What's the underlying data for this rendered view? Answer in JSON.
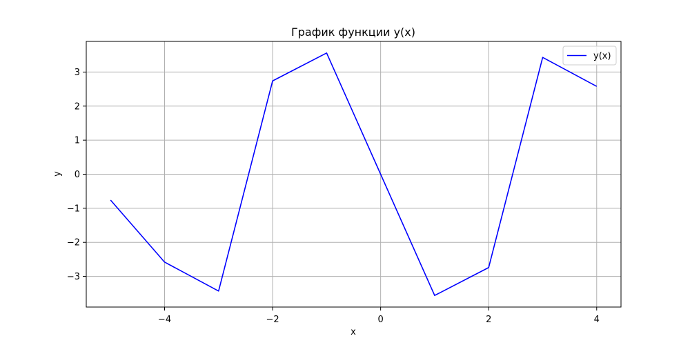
{
  "chart_data": {
    "type": "line",
    "title": "График функции y(x)",
    "xlabel": "x",
    "ylabel": "y",
    "xlim": [
      -5.45,
      4.45
    ],
    "ylim": [
      -3.9,
      3.9
    ],
    "xticks": [
      -4,
      -2,
      0,
      2,
      4
    ],
    "yticks": [
      -3,
      -2,
      -1,
      0,
      1,
      2,
      3
    ],
    "xtick_labels": [
      "−4",
      "−2",
      "0",
      "2",
      "4"
    ],
    "ytick_labels": [
      "−3",
      "−2",
      "−1",
      "0",
      "1",
      "2",
      "3"
    ],
    "grid": true,
    "legend_position": "upper-right",
    "series": [
      {
        "name": "y(x)",
        "color": "#0000ff",
        "x": [
          -5,
          -4,
          -3,
          -2,
          -1,
          0,
          1,
          2,
          3,
          4
        ],
        "y": [
          -0.76,
          -2.58,
          -3.43,
          2.74,
          3.56,
          0.0,
          -3.56,
          -2.74,
          3.43,
          2.58
        ]
      }
    ]
  }
}
